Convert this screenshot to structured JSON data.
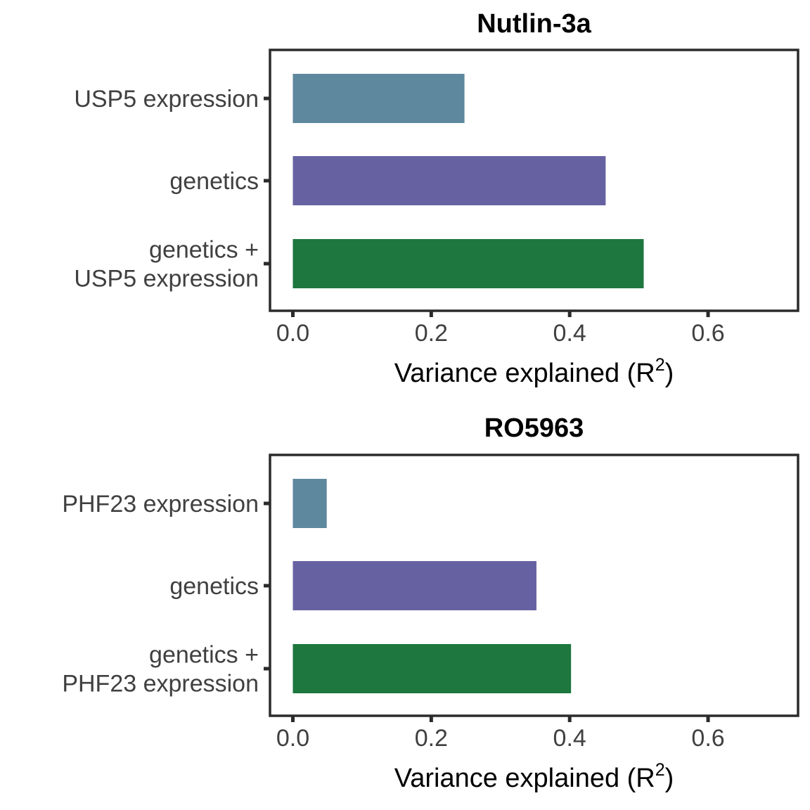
{
  "colors": {
    "expression": "#5e889e",
    "genetics": "#6662a2",
    "combined": "#1e773e",
    "frame": "#2b2b2b"
  },
  "chart_data": [
    {
      "type": "bar",
      "orientation": "horizontal",
      "title": "Nutlin-3a",
      "categories": [
        [
          "USP5 expression"
        ],
        [
          "genetics"
        ],
        [
          "genetics +",
          "USP5 expression"
        ]
      ],
      "values": [
        0.248,
        0.452,
        0.507
      ],
      "bar_colors": [
        "#5e889e",
        "#6662a2",
        "#1e773e"
      ],
      "xlabel": "Variance explained (R",
      "xlabel_superscript": "2",
      "xlabel_suffix": ")",
      "xlim": [
        -0.033,
        0.73
      ],
      "xticks": [
        0.0,
        0.2,
        0.4,
        0.6
      ],
      "xtick_labels": [
        "0.0",
        "0.2",
        "0.4",
        "0.6"
      ],
      "grid": false,
      "legend": "none"
    },
    {
      "type": "bar",
      "orientation": "horizontal",
      "title": "RO5963",
      "categories": [
        [
          "PHF23 expression"
        ],
        [
          "genetics"
        ],
        [
          "genetics +",
          "PHF23 expression"
        ]
      ],
      "values": [
        0.049,
        0.352,
        0.402
      ],
      "bar_colors": [
        "#5e889e",
        "#6662a2",
        "#1e773e"
      ],
      "xlabel": "Variance explained (R",
      "xlabel_superscript": "2",
      "xlabel_suffix": ")",
      "xlim": [
        -0.033,
        0.73
      ],
      "xticks": [
        0.0,
        0.2,
        0.4,
        0.6
      ],
      "xtick_labels": [
        "0.0",
        "0.2",
        "0.4",
        "0.6"
      ],
      "grid": false,
      "legend": "none"
    }
  ]
}
